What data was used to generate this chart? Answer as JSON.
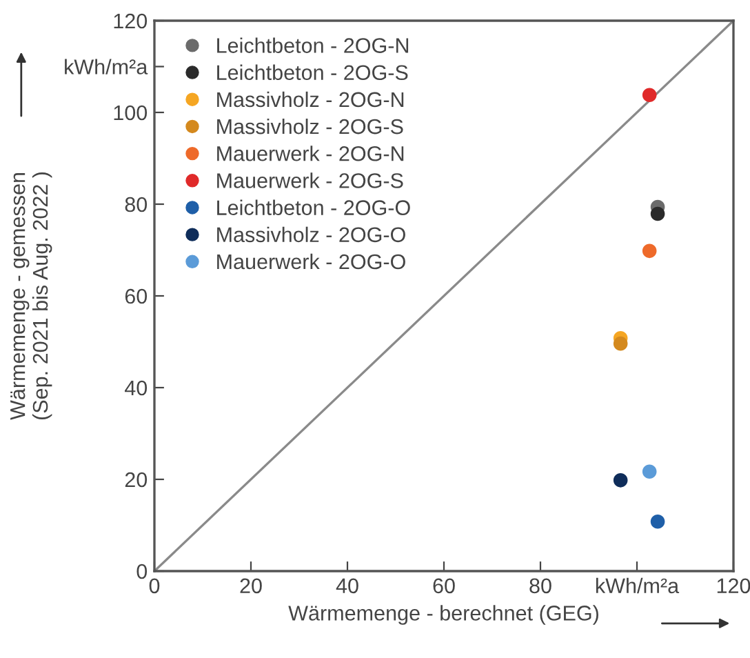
{
  "chart_data": {
    "type": "scatter",
    "xlabel": "Wärmemenge - berechnet (GEG)",
    "ylabel": "Wärmemenge - gemessen\n(Sep. 2021 bis Aug. 2022 )",
    "xlim": [
      0,
      120
    ],
    "ylim": [
      0,
      120
    ],
    "xticks": [
      0,
      20,
      40,
      60,
      80,
      {
        "value": 100,
        "label": "kWh/m²a"
      },
      120
    ],
    "yticks": [
      0,
      20,
      40,
      60,
      80,
      100,
      {
        "value": 110,
        "label": "kWh/m²a"
      },
      120
    ],
    "grid": false,
    "legend": "top left",
    "series": [
      {
        "name": "Leichtbeton - 2OG-N",
        "color": "#6b6b6b",
        "x": [
          104.3
        ],
        "values": [
          79.4
        ],
        "marker": "circle"
      },
      {
        "name": "Leichtbeton - 2OG-S",
        "color": "#2b2b2b",
        "x": [
          104.3
        ],
        "values": [
          77.9
        ]
      },
      {
        "name": "Massivholz - 2OG-N",
        "color": "#f5a623",
        "x": [
          96.6
        ],
        "values": [
          50.8
        ]
      },
      {
        "name": "Massivholz - 2OG-S",
        "color": "#d4891e",
        "x": [
          96.6
        ],
        "values": [
          49.6
        ]
      },
      {
        "name": "Mauerwerk - 2OG-N",
        "color": "#ee6a2a",
        "x": [
          102.6
        ],
        "values": [
          69.8
        ]
      },
      {
        "name": "Mauerwerk - 2OG-S",
        "color": "#e02a2a",
        "x": [
          102.6
        ],
        "values": [
          103.8
        ]
      },
      {
        "name": "Leichtbeton - 2OG-O",
        "color": "#1f5fa8",
        "x": [
          104.3
        ],
        "values": [
          10.8
        ]
      },
      {
        "name": "Massivholz - 2OG-O",
        "color": "#0f2d5a",
        "x": [
          96.6
        ],
        "values": [
          19.8
        ]
      },
      {
        "name": "Mauerwerk - 2OG-O",
        "color": "#5b9bd8",
        "x": [
          102.6
        ],
        "values": [
          21.7
        ]
      },
      {
        "type": "line",
        "color": "#8a8a8a",
        "x": [
          0,
          120
        ],
        "values": [
          0,
          120
        ],
        "line_style": "solid",
        "marker": "none"
      }
    ]
  }
}
